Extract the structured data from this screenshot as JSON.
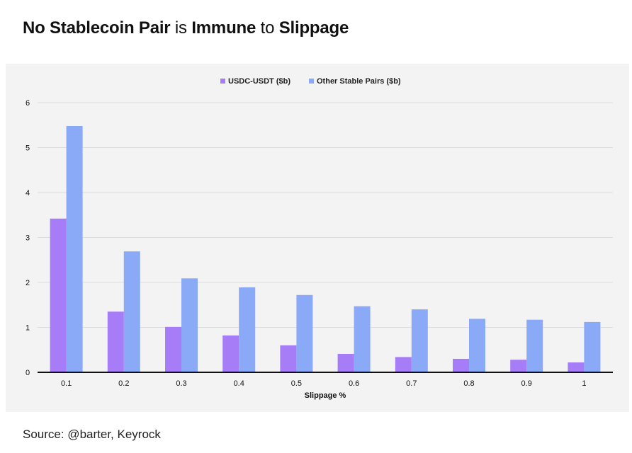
{
  "title": {
    "parts": [
      {
        "text": "No Stablecoin Pair",
        "bold": true
      },
      {
        "text": " is ",
        "bold": false
      },
      {
        "text": "Immune",
        "bold": true
      },
      {
        "text": " to ",
        "bold": false
      },
      {
        "text": "Slippage",
        "bold": true
      }
    ]
  },
  "source": "Source: @barter, Keyrock",
  "chart_data": {
    "type": "bar",
    "title": "",
    "xlabel": "Slippage %",
    "ylabel": "",
    "categories": [
      "0.1",
      "0.2",
      "0.3",
      "0.4",
      "0.5",
      "0.6",
      "0.7",
      "0.8",
      "0.9",
      "1"
    ],
    "series": [
      {
        "name": "USDC-USDT ($b)",
        "color": "#a77cf7",
        "values": [
          3.42,
          1.35,
          1.01,
          0.82,
          0.6,
          0.41,
          0.34,
          0.3,
          0.28,
          0.22
        ]
      },
      {
        "name": "Other Stable Pairs ($b)",
        "color": "#8aa9f7",
        "values": [
          5.48,
          2.69,
          2.09,
          1.89,
          1.72,
          1.47,
          1.4,
          1.19,
          1.17,
          1.12
        ]
      }
    ],
    "ylim": [
      0,
      6
    ],
    "yticks": [
      0,
      1,
      2,
      3,
      4,
      5,
      6
    ],
    "grid": true,
    "legend_position": "top-center"
  }
}
